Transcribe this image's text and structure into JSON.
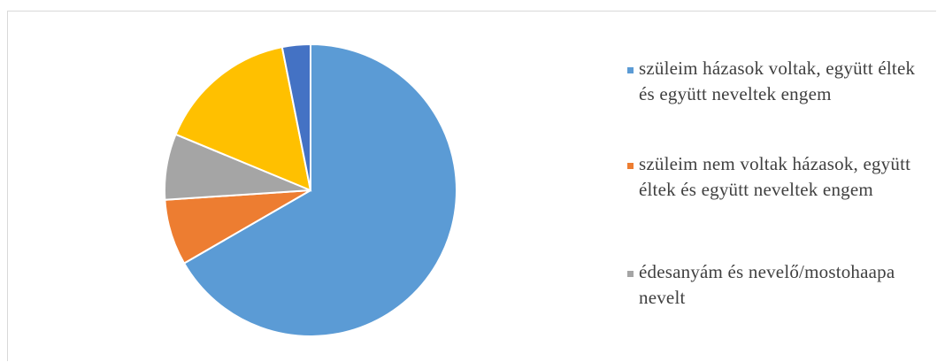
{
  "chart_data": {
    "type": "pie",
    "title": "",
    "legend_position": "right",
    "series": [
      {
        "name": "",
        "slices": [
          {
            "label": "szüleim házasok voltak, együtt éltek és együtt neveltek engem",
            "value": 64,
            "color": "#5b9bd5"
          },
          {
            "label": "szüleim nem voltak házasok, együtt éltek és együtt neveltek engem",
            "value": 7,
            "color": "#ed7d31"
          },
          {
            "label": "édesanyám és nevelő/mostohaapa nevelt",
            "value": 7,
            "color": "#a5a5a5"
          },
          {
            "label": "",
            "value": 15,
            "color": "#ffc000"
          },
          {
            "label": "",
            "value": 3,
            "color": "#4472c4"
          }
        ]
      }
    ],
    "legend": [
      {
        "label": "szüleim házasok voltak, együtt éltek és együtt neveltek engem",
        "color": "#5b9bd5"
      },
      {
        "label": "szüleim nem voltak házasok, együtt éltek és együtt neveltek engem",
        "color": "#ed7d31"
      },
      {
        "label": "édesanyám és nevelő/mostohaapa nevelt",
        "color": "#a5a5a5"
      }
    ]
  }
}
